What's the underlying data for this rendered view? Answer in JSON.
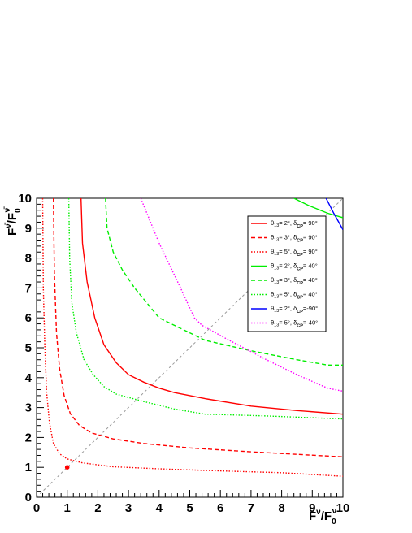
{
  "chart_data": {
    "type": "line",
    "xlim": [
      0,
      10
    ],
    "ylim": [
      0,
      10
    ],
    "xlabel": {
      "main": "F",
      "sup": "ν",
      "sep": "/F",
      "sub": "0",
      "sup2": "ν"
    },
    "ylabel": {
      "main": "F",
      "sup": "ν̄",
      "sep": "/F",
      "sub": "0",
      "sup2": "ν̄"
    },
    "x_ticks": [
      "0",
      "1",
      "2",
      "3",
      "4",
      "5",
      "6",
      "7",
      "8",
      "9",
      "10"
    ],
    "y_ticks": [
      "0",
      "1",
      "2",
      "3",
      "4",
      "5",
      "6",
      "7",
      "8",
      "9",
      "10"
    ],
    "legend_position": "top-right",
    "grid": false,
    "series": [
      {
        "name": "θ13= 2°, δCP= 90°",
        "theta": "2°",
        "delta": "= 90°",
        "color": "#ff0000",
        "style": "solid",
        "points": [
          [
            1.45,
            10
          ],
          [
            1.5,
            8.5
          ],
          [
            1.65,
            7.2
          ],
          [
            1.9,
            6.0
          ],
          [
            2.2,
            5.1
          ],
          [
            2.6,
            4.5
          ],
          [
            3.0,
            4.1
          ],
          [
            3.5,
            3.85
          ],
          [
            4.0,
            3.65
          ],
          [
            4.5,
            3.5
          ],
          [
            5.5,
            3.3
          ],
          [
            7.0,
            3.05
          ],
          [
            8.5,
            2.9
          ],
          [
            10,
            2.78
          ]
        ]
      },
      {
        "name": "θ13= 3°, δCP= 90°",
        "theta": "3°",
        "delta": "= 90°",
        "color": "#ff0000",
        "style": "dashed",
        "points": [
          [
            0.55,
            10
          ],
          [
            0.58,
            7.5
          ],
          [
            0.65,
            5.5
          ],
          [
            0.75,
            4.3
          ],
          [
            0.9,
            3.4
          ],
          [
            1.1,
            2.8
          ],
          [
            1.4,
            2.4
          ],
          [
            1.8,
            2.15
          ],
          [
            2.5,
            1.95
          ],
          [
            3.5,
            1.8
          ],
          [
            5.0,
            1.65
          ],
          [
            7.0,
            1.52
          ],
          [
            10,
            1.35
          ]
        ]
      },
      {
        "name": "θ13= 5°, δCP= 90°",
        "theta": "5°",
        "delta": "= 90°",
        "color": "#ff0000",
        "style": "dotted",
        "points": [
          [
            0.2,
            10
          ],
          [
            0.22,
            7.0
          ],
          [
            0.27,
            5.0
          ],
          [
            0.33,
            3.5
          ],
          [
            0.42,
            2.5
          ],
          [
            0.55,
            1.8
          ],
          [
            0.75,
            1.45
          ],
          [
            1.0,
            1.28
          ],
          [
            1.5,
            1.15
          ],
          [
            2.5,
            1.02
          ],
          [
            4.0,
            0.95
          ],
          [
            6.0,
            0.88
          ],
          [
            8.0,
            0.82
          ],
          [
            10,
            0.7
          ]
        ]
      },
      {
        "name": "θ13= 2°, δCP= 40°",
        "theta": "2°",
        "delta": "= 40°",
        "color": "#00ee00",
        "style": "solid",
        "points": [
          [
            8.4,
            10
          ],
          [
            8.9,
            9.75
          ],
          [
            9.5,
            9.5
          ],
          [
            10,
            9.35
          ]
        ]
      },
      {
        "name": "θ13= 3°, δCP= 40°",
        "theta": "3°",
        "delta": "= 40°",
        "color": "#00ee00",
        "style": "dashed",
        "points": [
          [
            2.25,
            10
          ],
          [
            2.3,
            9.0
          ],
          [
            2.5,
            8.2
          ],
          [
            2.8,
            7.6
          ],
          [
            3.2,
            7.0
          ],
          [
            3.6,
            6.5
          ],
          [
            4.0,
            6.0
          ],
          [
            4.7,
            5.65
          ],
          [
            5.5,
            5.25
          ],
          [
            7.0,
            4.9
          ],
          [
            8.5,
            4.6
          ],
          [
            9.5,
            4.42
          ],
          [
            10,
            4.42
          ]
        ]
      },
      {
        "name": "θ13= 5°, δCP= 40°",
        "theta": "5°",
        "delta": "= 40°",
        "color": "#00ee00",
        "style": "dotted",
        "points": [
          [
            1.05,
            10
          ],
          [
            1.08,
            8.0
          ],
          [
            1.15,
            6.5
          ],
          [
            1.3,
            5.5
          ],
          [
            1.55,
            4.6
          ],
          [
            1.85,
            4.1
          ],
          [
            2.2,
            3.7
          ],
          [
            2.6,
            3.45
          ],
          [
            3.5,
            3.2
          ],
          [
            4.5,
            2.95
          ],
          [
            5.5,
            2.78
          ],
          [
            7.5,
            2.72
          ],
          [
            10,
            2.62
          ]
        ]
      },
      {
        "name": "θ13= 2°, δCP=-90°",
        "theta": "2°",
        "delta": "=-90°",
        "color": "#0000ff",
        "style": "solid",
        "points": [
          [
            9.45,
            10
          ],
          [
            9.7,
            9.5
          ],
          [
            10,
            8.95
          ]
        ]
      },
      {
        "name": "θ13= 5°, δCP=-40°",
        "theta": "5°",
        "delta": "=-40°",
        "color": "#ff00ff",
        "style": "dotted",
        "points": [
          [
            3.4,
            10
          ],
          [
            4.0,
            8.5
          ],
          [
            4.7,
            7.0
          ],
          [
            5.15,
            6.0
          ],
          [
            5.4,
            5.75
          ],
          [
            6.2,
            5.3
          ],
          [
            7.5,
            4.6
          ],
          [
            8.5,
            4.1
          ],
          [
            9.5,
            3.65
          ],
          [
            10,
            3.55
          ]
        ]
      }
    ],
    "diagonal": {
      "from": [
        0,
        0
      ],
      "to": [
        10,
        10
      ],
      "color": "#999999",
      "style": "dashed"
    },
    "marker": {
      "x": 1,
      "y": 1,
      "color": "#ff0000"
    }
  }
}
